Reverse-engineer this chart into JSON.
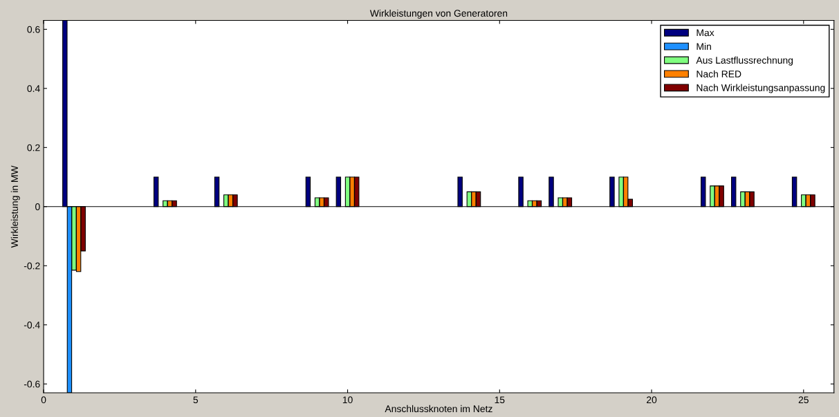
{
  "chart_data": {
    "type": "bar",
    "title": "Wirkleistungen von Generatoren",
    "xlabel": "Anschlussknoten im Netz",
    "ylabel": "Wirkleistung in MW",
    "x": [
      1,
      4,
      6,
      9,
      10,
      14,
      16,
      17,
      19,
      22,
      23,
      25
    ],
    "series": [
      {
        "name": "Max",
        "color": "#000080",
        "values": [
          0.63,
          0.1,
          0.1,
          0.1,
          0.1,
          0.1,
          0.1,
          0.1,
          0.1,
          0.1,
          0.1,
          0.1
        ]
      },
      {
        "name": "Min",
        "color": "#1e90ff",
        "values": [
          -0.63,
          null,
          null,
          null,
          null,
          null,
          null,
          null,
          null,
          null,
          null,
          null
        ]
      },
      {
        "name": "Aus Lastflussrechnung",
        "color": "#80ff80",
        "values": [
          -0.215,
          0.02,
          0.04,
          0.03,
          0.1,
          0.05,
          0.02,
          0.03,
          0.1,
          0.07,
          0.05,
          0.04
        ]
      },
      {
        "name": "Nach RED",
        "color": "#ff8000",
        "values": [
          -0.22,
          0.02,
          0.04,
          0.03,
          0.1,
          0.05,
          0.02,
          0.03,
          0.1,
          0.07,
          0.05,
          0.04
        ]
      },
      {
        "name": "Nach Wirkleistungsanpassung",
        "color": "#800000",
        "values": [
          -0.15,
          0.02,
          0.04,
          0.03,
          0.1,
          0.05,
          0.02,
          0.03,
          0.025,
          0.07,
          0.05,
          0.04
        ]
      }
    ],
    "xlim": [
      0,
      26
    ],
    "xticks": [
      0,
      5,
      10,
      15,
      20,
      25
    ],
    "ylim": [
      -0.63,
      0.63
    ],
    "yticks": [
      -0.6,
      -0.4,
      -0.2,
      0,
      0.2,
      0.4,
      0.6
    ],
    "ref_lines": [
      {
        "axis": "y",
        "value": 0,
        "color": "#000000"
      }
    ],
    "legend": "top right",
    "grid": false
  }
}
